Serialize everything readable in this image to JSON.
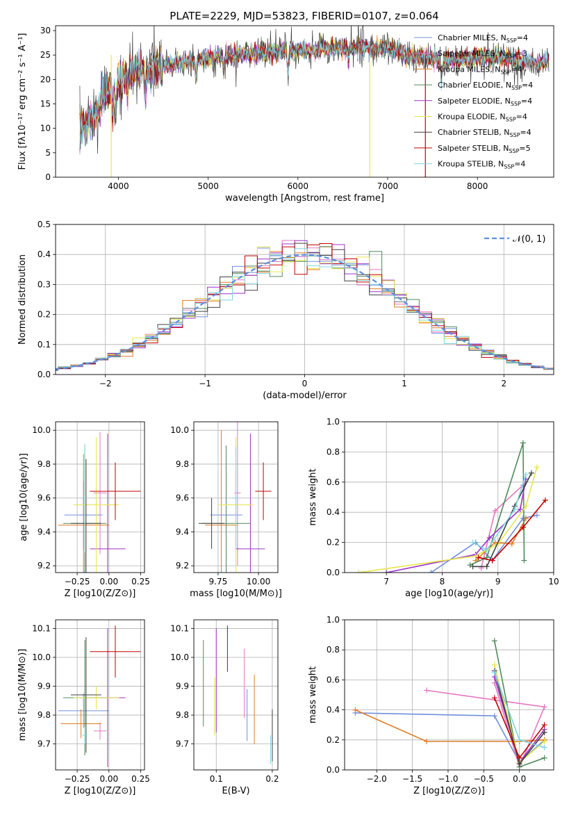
{
  "chart_data": [
    {
      "type": "line",
      "id": "spectrum",
      "title": "PLATE=2229, MJD=53823, FIBERID=0107, z=0.064",
      "xlabel": "wavelength [Angstrom, rest frame]",
      "ylabel": "Flux [fλ10⁻¹⁷ erg cm⁻² s⁻¹ A⁻¹]",
      "xlim": [
        3300,
        8850
      ],
      "ylim": [
        0,
        31
      ],
      "xticks": [
        4000,
        5000,
        6000,
        7000,
        8000
      ],
      "yticks": [
        0,
        5,
        10,
        15,
        20,
        25,
        30
      ],
      "grid": false,
      "legend": "top-right",
      "continuum": {
        "x": [
          3570,
          3650,
          3750,
          3850,
          3950,
          4050,
          4150,
          4300,
          4450,
          4600,
          4800,
          5000,
          5200,
          5400,
          5600,
          5800,
          6000,
          6200,
          6400,
          6600,
          6800,
          7000,
          7200,
          7400,
          7600,
          7800,
          8000,
          8200,
          8400,
          8600,
          8800
        ],
        "y": [
          12,
          13,
          15,
          17.5,
          19,
          20.5,
          21.5,
          22,
          22.5,
          23,
          24,
          24.5,
          25,
          25.2,
          25.5,
          25.8,
          26,
          26.2,
          26.5,
          26.5,
          26.5,
          26.5,
          25,
          24.5,
          24,
          24,
          24.5,
          24.5,
          24,
          23.5,
          23.5
        ]
      },
      "series": [
        {
          "name": "Chabrier MILES, N",
          "nssp": "4",
          "color": "#6f8fdc"
        },
        {
          "name": "Salpeter MILES, N",
          "nssp": "3",
          "color": "#e377c2"
        },
        {
          "name": "Kroupa MILES, N",
          "nssp": "4",
          "color": "#e07b20"
        },
        {
          "name": "Chabrier ELODIE, N",
          "nssp": "4",
          "color": "#4e8a5a"
        },
        {
          "name": "Salpeter ELODIE, N",
          "nssp": "4",
          "color": "#9b30c8"
        },
        {
          "name": "Kroupa ELODIE, N",
          "nssp": "4",
          "color": "#e6e64a"
        },
        {
          "name": "Chabrier STELIB, N",
          "nssp": "4",
          "color": "#404040"
        },
        {
          "name": "Salpeter STELIB, N",
          "nssp": "5",
          "color": "#c00000"
        },
        {
          "name": "Kroupa STELIB, N",
          "nssp": "4",
          "color": "#7fd4e0"
        }
      ],
      "nssp_sub": "SSP"
    },
    {
      "type": "step",
      "id": "residuals",
      "xlabel": "(data-model)/error",
      "ylabel": "Normed distribution",
      "xlim": [
        -2.5,
        2.5
      ],
      "ylim": [
        0,
        0.5
      ],
      "xticks": [
        -2,
        -1,
        0,
        1,
        2
      ],
      "yticks": [
        0.0,
        0.1,
        0.2,
        0.3,
        0.4,
        0.5
      ],
      "grid": true,
      "legend": "top-right",
      "reference": {
        "name": "𝒩(0, 1)",
        "color": "#5b8fe0",
        "mean": 0,
        "sigma": 1
      }
    },
    {
      "type": "scatter",
      "id": "age-vs-Z",
      "xlabel": "Z [log10(Z/Z⊙)]",
      "ylabel": "age  [log10(age/yr)]",
      "xlim": [
        -0.42,
        0.28
      ],
      "ylim": [
        9.16,
        10.05
      ],
      "xticks": [
        -0.25,
        0.0,
        0.25
      ],
      "yticks": [
        9.2,
        9.4,
        9.6,
        9.8,
        10.0
      ],
      "grid": true,
      "points": [
        {
          "x": -0.2,
          "xerr": 0.15,
          "y": 9.5,
          "yerr": 0.2,
          "color": "#6f8fdc"
        },
        {
          "x": -0.07,
          "xerr": 0.05,
          "y": 9.63,
          "yerr": 0.36,
          "color": "#e377c2"
        },
        {
          "x": -0.2,
          "xerr": 0.2,
          "y": 9.44,
          "yerr": 0.42,
          "color": "#e07b20"
        },
        {
          "x": -0.19,
          "xerr": 0.17,
          "y": 9.45,
          "yerr": 0.46,
          "color": "#4e8a5a"
        },
        {
          "x": -0.01,
          "xerr": 0.14,
          "y": 9.3,
          "yerr": 0.68,
          "color": "#9b30c8"
        },
        {
          "x": -0.1,
          "xerr": 0.18,
          "y": 9.56,
          "yerr": 0.4,
          "color": "#e6e64a"
        },
        {
          "x": -0.18,
          "xerr": 0.12,
          "y": 9.45,
          "yerr": 0.38,
          "color": "#404040"
        },
        {
          "x": 0.05,
          "xerr": 0.2,
          "y": 9.64,
          "yerr": 0.17,
          "color": "#c00000"
        },
        {
          "x": -0.19,
          "xerr": 0.02,
          "y": 9.6,
          "yerr": 0.32,
          "color": "#7fd4e0"
        }
      ]
    },
    {
      "type": "scatter",
      "id": "age-vs-mass",
      "xlabel": "mass [log10(M/M⊙)]",
      "ylabel": "",
      "xlim": [
        9.6,
        10.12
      ],
      "ylim": [
        9.16,
        10.05
      ],
      "xticks": [
        9.75,
        10.0
      ],
      "yticks": [
        9.2,
        9.4,
        9.6,
        9.8,
        10.0
      ],
      "grid": true,
      "points": [
        {
          "x": 9.8,
          "xerr": 0.1,
          "y": 9.5,
          "yerr": 0.35,
          "color": "#6f8fdc"
        },
        {
          "x": 9.87,
          "xerr": 0.02,
          "y": 9.63,
          "yerr": 0.43,
          "color": "#e377c2"
        },
        {
          "x": 9.77,
          "xerr": 0.1,
          "y": 9.44,
          "yerr": 0.56,
          "color": "#e07b20"
        },
        {
          "x": 9.8,
          "xerr": 0.15,
          "y": 9.45,
          "yerr": 0.46,
          "color": "#4e8a5a"
        },
        {
          "x": 9.95,
          "xerr": 0.09,
          "y": 9.3,
          "yerr": 0.68,
          "color": "#9b30c8"
        },
        {
          "x": 9.86,
          "xerr": 0.11,
          "y": 9.56,
          "yerr": 0.4,
          "color": "#e6e64a"
        },
        {
          "x": 9.71,
          "xerr": 0.08,
          "y": 9.45,
          "yerr": 0.15,
          "color": "#404040"
        },
        {
          "x": 10.03,
          "xerr": 0.05,
          "y": 9.64,
          "yerr": 0.17,
          "color": "#c00000"
        },
        {
          "x": 9.86,
          "xerr": 0.02,
          "y": 9.6,
          "yerr": 0.3,
          "color": "#7fd4e0"
        }
      ]
    },
    {
      "type": "line",
      "id": "mass-weight-vs-age",
      "xlabel": "age  [log10(age/yr)]",
      "ylabel": "mass weight",
      "xlim": [
        6.25,
        10.0
      ],
      "ylim": [
        0,
        1.0
      ],
      "xticks": [
        7,
        8,
        9,
        10
      ],
      "yticks": [
        0.0,
        0.2,
        0.4,
        0.6,
        0.8,
        1.0
      ],
      "grid": true,
      "series": [
        {
          "color": "#6f8fdc",
          "x": [
            7.8,
            8.6,
            8.9,
            9.45,
            9.7
          ],
          "y": [
            0.0,
            0.2,
            0.08,
            0.36,
            0.38
          ]
        },
        {
          "color": "#e377c2",
          "x": [
            8.7,
            8.95,
            9.45
          ],
          "y": [
            0.03,
            0.41,
            0.58
          ]
        },
        {
          "color": "#e07b20",
          "x": [
            8.6,
            8.95,
            9.25,
            9.5
          ],
          "y": [
            0.08,
            0.2,
            0.19,
            0.36
          ]
        },
        {
          "color": "#4e8a5a",
          "x": [
            8.5,
            8.8,
            9.45,
            9.47
          ],
          "y": [
            0.05,
            0.1,
            0.86,
            0.08
          ]
        },
        {
          "color": "#9b30c8",
          "x": [
            7.0,
            8.6,
            8.85,
            9.4,
            9.5
          ],
          "y": [
            0.0,
            0.12,
            0.23,
            0.42,
            0.62
          ]
        },
        {
          "color": "#e6e64a",
          "x": [
            6.5,
            8.6,
            9.0,
            9.5,
            9.7
          ],
          "y": [
            0.0,
            0.11,
            0.19,
            0.44,
            0.7
          ]
        },
        {
          "color": "#404040",
          "x": [
            8.55,
            8.8,
            9.3,
            9.6
          ],
          "y": [
            0.04,
            0.04,
            0.44,
            0.66
          ]
        },
        {
          "color": "#c00000",
          "x": [
            8.65,
            8.9,
            9.45,
            9.85
          ],
          "y": [
            0.1,
            0.08,
            0.3,
            0.48
          ]
        },
        {
          "color": "#7fd4e0",
          "x": [
            8.55,
            8.8,
            9.3,
            9.5
          ],
          "y": [
            0.2,
            0.15,
            0.42,
            0.65
          ]
        }
      ]
    },
    {
      "type": "scatter",
      "id": "mass-vs-Z",
      "xlabel": "Z [log10(Z/Z⊙)]",
      "ylabel": "mass [log10(M/M⊙)]",
      "xlim": [
        -0.42,
        0.28
      ],
      "ylim": [
        9.61,
        10.13
      ],
      "xticks": [
        -0.25,
        0.0,
        0.25
      ],
      "yticks": [
        9.7,
        9.8,
        9.9,
        10.0,
        10.1
      ],
      "grid": true,
      "points": [
        {
          "x": -0.2,
          "xerr": 0.2,
          "y": 9.815,
          "yerr": 0.06,
          "color": "#6f8fdc"
        },
        {
          "x": -0.07,
          "xerr": 0.05,
          "y": 9.745,
          "yerr": 0.03,
          "color": "#e377c2"
        },
        {
          "x": -0.22,
          "xerr": 0.16,
          "y": 9.77,
          "yerr": 0.05,
          "color": "#e07b20"
        },
        {
          "x": -0.19,
          "xerr": 0.17,
          "y": 9.86,
          "yerr": 0.2,
          "color": "#4e8a5a"
        },
        {
          "x": -0.01,
          "xerr": 0.14,
          "y": 9.86,
          "yerr": 0.24,
          "color": "#9b30c8"
        },
        {
          "x": -0.1,
          "xerr": 0.18,
          "y": 9.86,
          "yerr": 0.04,
          "color": "#e6e64a"
        },
        {
          "x": -0.18,
          "xerr": 0.12,
          "y": 9.87,
          "yerr": 0.2,
          "color": "#404040"
        },
        {
          "x": 0.05,
          "xerr": 0.2,
          "y": 10.02,
          "yerr": 0.09,
          "color": "#c00000"
        },
        {
          "x": -0.19,
          "xerr": 0.02,
          "y": 9.73,
          "yerr": 0.03,
          "color": "#7fd4e0"
        }
      ]
    },
    {
      "type": "scatter",
      "id": "mass-vs-ebv",
      "xlabel": "E(B-V)",
      "ylabel": "",
      "xlim": [
        0.06,
        0.21
      ],
      "ylim": [
        9.61,
        10.13
      ],
      "xticks": [
        0.1,
        0.2
      ],
      "yticks": [
        9.7,
        9.8,
        9.9,
        10.0,
        10.1
      ],
      "grid": true,
      "points": [
        {
          "x": 0.155,
          "y": 9.8,
          "yerr": 0.09,
          "color": "#6f8fdc"
        },
        {
          "x": 0.15,
          "y": 9.91,
          "yerr": 0.12,
          "color": "#e377c2"
        },
        {
          "x": 0.168,
          "y": 9.82,
          "yerr": 0.12,
          "color": "#e07b20"
        },
        {
          "x": 0.077,
          "y": 9.91,
          "yerr": 0.15,
          "color": "#4e8a5a"
        },
        {
          "x": 0.1,
          "y": 9.92,
          "yerr": 0.18,
          "color": "#9b30c8"
        },
        {
          "x": 0.097,
          "y": 9.83,
          "yerr": 0.1,
          "color": "#e6e64a"
        },
        {
          "x": 0.2,
          "y": 9.73,
          "yerr": 0.09,
          "color": "#404040"
        },
        {
          "x": 0.12,
          "y": 10.03,
          "yerr": 0.08,
          "color": "#c00000"
        },
        {
          "x": 0.197,
          "y": 9.68,
          "yerr": 0.05,
          "color": "#7fd4e0"
        }
      ]
    },
    {
      "type": "line",
      "id": "mass-weight-vs-Z",
      "xlabel": "Z [log10(Z/Z⊙)]",
      "ylabel": "mass weight",
      "xlim": [
        -2.45,
        0.48
      ],
      "ylim": [
        0,
        1.0
      ],
      "xticks": [
        -2.0,
        -1.5,
        -1.0,
        -0.5,
        0.0
      ],
      "yticks": [
        0.0,
        0.2,
        0.4,
        0.6,
        0.8,
        1.0
      ],
      "grid": true,
      "series": [
        {
          "color": "#6f8fdc",
          "x": [
            -2.3,
            -0.35,
            0.0,
            0.35
          ],
          "y": [
            0.38,
            0.36,
            0.05,
            0.2
          ]
        },
        {
          "color": "#e377c2",
          "x": [
            -1.3,
            0.35,
            0.0,
            -0.35
          ],
          "y": [
            0.53,
            0.42,
            0.02,
            0.58
          ]
        },
        {
          "color": "#e07b20",
          "x": [
            -2.3,
            -1.3,
            0.0,
            0.35
          ],
          "y": [
            0.4,
            0.19,
            0.19,
            0.2
          ]
        },
        {
          "color": "#4e8a5a",
          "x": [
            -0.35,
            0.0,
            0.35
          ],
          "y": [
            0.86,
            0.02,
            0.08
          ]
        },
        {
          "color": "#9b30c8",
          "x": [
            -0.35,
            0.0,
            0.35
          ],
          "y": [
            0.62,
            0.05,
            0.27
          ]
        },
        {
          "color": "#e6e64a",
          "x": [
            -0.35,
            0.0,
            0.35
          ],
          "y": [
            0.7,
            0.05,
            0.19
          ]
        },
        {
          "color": "#404040",
          "x": [
            -0.35,
            0.0,
            0.35
          ],
          "y": [
            0.66,
            0.04,
            0.25
          ]
        },
        {
          "color": "#c00000",
          "x": [
            -0.35,
            0.0,
            0.35
          ],
          "y": [
            0.48,
            0.08,
            0.3
          ]
        },
        {
          "color": "#7fd4e0",
          "x": [
            -0.35,
            0.0,
            0.35
          ],
          "y": [
            0.65,
            0.2,
            0.15
          ]
        }
      ]
    }
  ]
}
